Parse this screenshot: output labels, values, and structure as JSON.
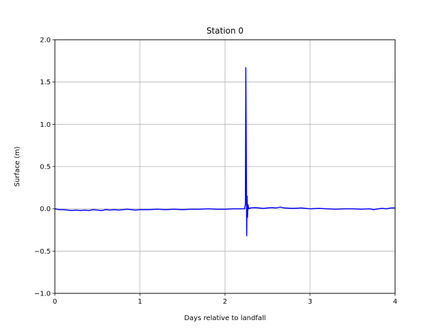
{
  "chart_data": {
    "type": "line",
    "title": "Station 0",
    "xlabel": "Days relative to landfall",
    "ylabel": "Surface (m)",
    "xlim": [
      0,
      4
    ],
    "ylim": [
      -1.0,
      2.0
    ],
    "xticks": [
      0,
      1,
      2,
      3,
      4
    ],
    "xtick_labels": [
      "0",
      "1",
      "2",
      "3",
      "4"
    ],
    "yticks": [
      -1.0,
      -0.5,
      0.0,
      0.5,
      1.0,
      1.5,
      2.0
    ],
    "ytick_labels": [
      "−1.0",
      "−0.5",
      "0.0",
      "0.5",
      "1.0",
      "1.5",
      "2.0"
    ],
    "grid": true,
    "line_color": "#0000ff",
    "series": [
      {
        "x": [
          0.0,
          0.05,
          0.1,
          0.15,
          0.2,
          0.25,
          0.3,
          0.35,
          0.4,
          0.45,
          0.5,
          0.55,
          0.6,
          0.65,
          0.7,
          0.75,
          0.8,
          0.85,
          0.9,
          0.95,
          1.0,
          1.1,
          1.2,
          1.3,
          1.4,
          1.5,
          1.6,
          1.7,
          1.8,
          1.9,
          2.0,
          2.1,
          2.2,
          2.23,
          2.24,
          2.245,
          2.25,
          2.255,
          2.26,
          2.265,
          2.27,
          2.28,
          2.3,
          2.35,
          2.4,
          2.45,
          2.5,
          2.55,
          2.6,
          2.65,
          2.7,
          2.8,
          2.9,
          3.0,
          3.1,
          3.2,
          3.3,
          3.4,
          3.5,
          3.6,
          3.7,
          3.75,
          3.8,
          3.85,
          3.9,
          3.95,
          4.0
        ],
        "y": [
          0.0,
          -0.01,
          -0.01,
          -0.015,
          -0.02,
          -0.015,
          -0.02,
          -0.015,
          -0.02,
          -0.01,
          -0.015,
          -0.02,
          -0.01,
          -0.015,
          -0.01,
          -0.015,
          -0.01,
          -0.005,
          -0.01,
          -0.015,
          -0.01,
          -0.01,
          -0.005,
          -0.01,
          -0.005,
          -0.01,
          -0.005,
          -0.005,
          0.0,
          -0.005,
          -0.005,
          0.0,
          0.0,
          0.0,
          0.05,
          1.67,
          0.8,
          -0.32,
          0.15,
          -0.1,
          0.05,
          0.0,
          0.01,
          0.015,
          0.01,
          0.005,
          0.01,
          0.015,
          0.01,
          0.02,
          0.01,
          0.005,
          0.01,
          0.0,
          0.005,
          0.0,
          -0.005,
          0.0,
          0.0,
          -0.005,
          0.0,
          -0.01,
          0.0,
          0.005,
          0.0,
          0.01,
          0.01
        ]
      }
    ]
  }
}
